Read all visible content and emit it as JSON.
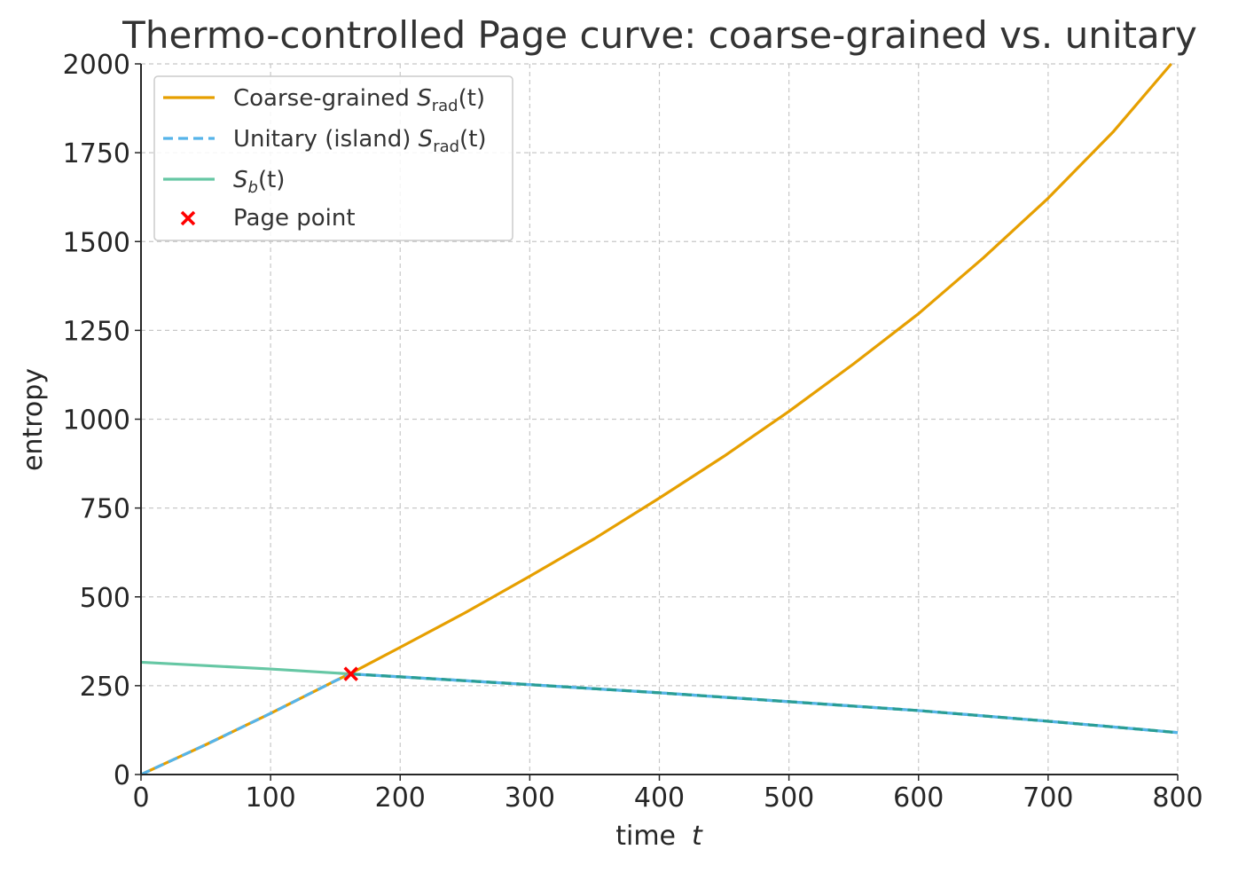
{
  "chart_data": {
    "type": "line",
    "title": "Thermo-controlled Page curve: coarse-grained vs. unitary",
    "xlabel": "time",
    "xlabel_symbol": "t",
    "ylabel": "entropy",
    "xlim": [
      0,
      800
    ],
    "ylim": [
      0,
      2000
    ],
    "xticks": [
      0,
      100,
      200,
      300,
      400,
      500,
      600,
      700,
      800
    ],
    "yticks": [
      0,
      250,
      500,
      750,
      1000,
      1250,
      1500,
      1750,
      2000
    ],
    "grid": true,
    "legend_position": "upper-left",
    "series": [
      {
        "name": "Coarse-grained S_rad(t)",
        "legend_text": "Coarse-grained ",
        "legend_symbol": "S",
        "legend_sub": "rad",
        "legend_arg": "(t)",
        "color": "#E69F00",
        "style": "solid",
        "x": [
          0,
          25,
          50,
          75,
          100,
          125,
          150,
          162,
          175,
          200,
          250,
          300,
          350,
          400,
          450,
          500,
          550,
          600,
          650,
          700,
          750,
          795
        ],
        "y": [
          0,
          42,
          84,
          128,
          172,
          218,
          264,
          285,
          310,
          358,
          455,
          558,
          664,
          778,
          896,
          1022,
          1156,
          1297,
          1454,
          1622,
          1808,
          2000
        ]
      },
      {
        "name": "Unitary (island) S_rad(t)",
        "legend_text": "Unitary (island) ",
        "legend_symbol": "S",
        "legend_sub": "rad",
        "legend_arg": "(t)",
        "color": "#56B4E9",
        "style": "dashed",
        "x": [
          0,
          25,
          50,
          75,
          100,
          125,
          150,
          162,
          200,
          300,
          400,
          500,
          600,
          700,
          800
        ],
        "y": [
          0,
          42,
          84,
          128,
          172,
          218,
          264,
          283,
          275,
          253,
          230,
          205,
          180,
          150,
          118
        ]
      },
      {
        "name": "S_b(t)",
        "legend_text": "",
        "legend_symbol": "S",
        "legend_sub": "b",
        "legend_arg": "(t)",
        "color": "#66C7A4",
        "style": "solid",
        "x": [
          0,
          100,
          162,
          200,
          300,
          400,
          500,
          600,
          700,
          800
        ],
        "y": [
          316,
          297,
          283,
          275,
          253,
          230,
          205,
          180,
          150,
          118
        ]
      }
    ],
    "overlay_segment": {
      "color": "#2A9D96",
      "x": [
        162,
        200,
        300,
        400,
        500,
        600,
        700,
        800
      ],
      "y": [
        283,
        275,
        253,
        230,
        205,
        180,
        150,
        118
      ]
    },
    "page_point": {
      "name": "Page point",
      "x": 162,
      "y": 283,
      "color": "#FF0000",
      "marker": "x"
    }
  }
}
